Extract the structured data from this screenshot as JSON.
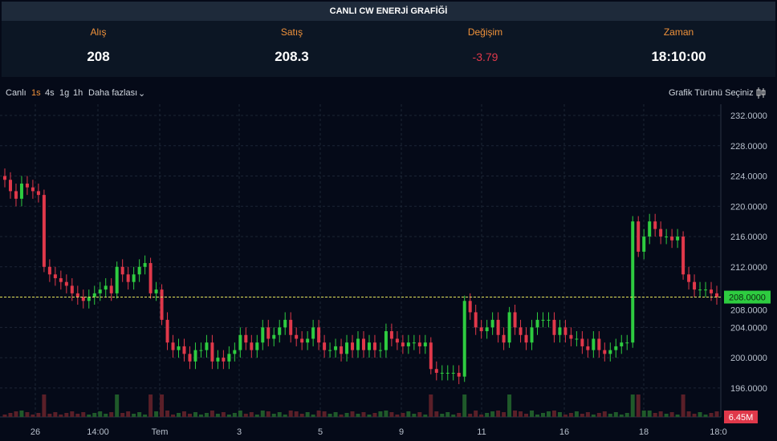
{
  "title": "CANLI CW ENERJİ GRAFİĞİ",
  "stats": [
    {
      "label": "Alış",
      "value": "208"
    },
    {
      "label": "Satış",
      "value": "208.3"
    },
    {
      "label": "Değişim",
      "value": "-3.79"
    },
    {
      "label": "Zaman",
      "value": "18:10:00"
    }
  ],
  "toolbar": {
    "live": "Canlı",
    "intervals": [
      "1s",
      "4s",
      "1g",
      "1h"
    ],
    "active": "1s",
    "more": "Daha fazlası",
    "chart_type": "Grafik Türünü Seçiniz"
  },
  "colors": {
    "up": "#2ecc40",
    "down": "#e0384a",
    "accent": "#f0923a",
    "price_line": "#e6e65a"
  },
  "chart_data": {
    "type": "candlestick",
    "ylim": [
      192,
      234
    ],
    "y_ticks": [
      "232.0000",
      "228.0000",
      "224.0000",
      "220.0000",
      "216.0000",
      "212.0000",
      "208.0000",
      "204.0000",
      "200.0000",
      "196.0000"
    ],
    "x_ticks": [
      "26",
      "14:00",
      "Tem",
      "3",
      "5",
      "9",
      "11",
      "16",
      "18",
      "18:0"
    ],
    "current_price": "208.0000",
    "volume_label": "6.45M",
    "first_open": 224,
    "closes": [
      223.5,
      222,
      221,
      223,
      222.5,
      222,
      221.5,
      212,
      211,
      210.5,
      210,
      209.5,
      208.5,
      208,
      207.5,
      208,
      208.5,
      209,
      209.5,
      208.5,
      212,
      211,
      210,
      211,
      212,
      212.5,
      208.5,
      209,
      205,
      202,
      201,
      201.5,
      200.5,
      199.5,
      201,
      201,
      202,
      199.5,
      200,
      199.5,
      200.5,
      201,
      203,
      202,
      201,
      202,
      204,
      202.5,
      203,
      204,
      205,
      203,
      202.5,
      202,
      202.5,
      204,
      202,
      201,
      201,
      201.5,
      200.5,
      202,
      201,
      202.5,
      201,
      202,
      201,
      201,
      203.5,
      202.5,
      202,
      201.5,
      202,
      202,
      201.5,
      202,
      198.5,
      198,
      198,
      198,
      198,
      197.5,
      207.5,
      206,
      204,
      203.5,
      204,
      205,
      203,
      202,
      206,
      204,
      203,
      202,
      204,
      205,
      205,
      205,
      203,
      204,
      203,
      202.5,
      202.5,
      201.5,
      201,
      202.5,
      201,
      200.5,
      201,
      201.5,
      202,
      202,
      218,
      214,
      216,
      218,
      217,
      216,
      216,
      215.5,
      216,
      211,
      210,
      209,
      209,
      209,
      208.5,
      208
    ]
  }
}
